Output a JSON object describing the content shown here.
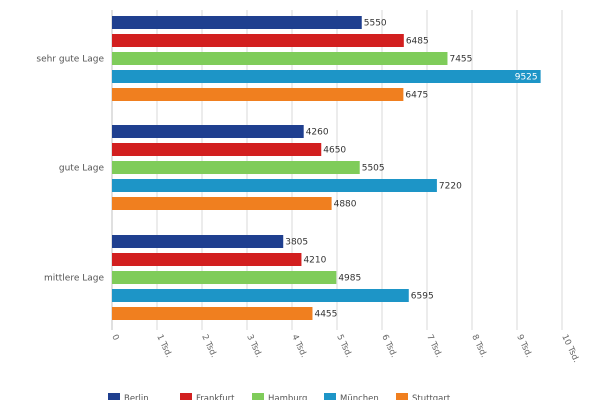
{
  "chart_data": {
    "type": "bar",
    "orientation": "horizontal",
    "categories": [
      "sehr gute Lage",
      "gute Lage",
      "mittlere Lage"
    ],
    "series": [
      {
        "name": "Berlin",
        "color": "#1f3f8f",
        "values": [
          5550,
          4260,
          3805
        ]
      },
      {
        "name": "Frankfurt",
        "color": "#d21f1f",
        "values": [
          6485,
          4650,
          4210
        ]
      },
      {
        "name": "Hamburg",
        "color": "#7fcc5a",
        "values": [
          7455,
          5505,
          4985
        ]
      },
      {
        "name": "München",
        "color": "#1d95c7",
        "values": [
          9525,
          7220,
          6595
        ]
      },
      {
        "name": "Stuttgart",
        "color": "#f07f1f",
        "values": [
          6475,
          4880,
          4455
        ]
      }
    ],
    "value_labels": [
      [
        "5550",
        "6485",
        "7455",
        "9525",
        "6475"
      ],
      [
        "4260",
        "4650",
        "5505",
        "7220",
        "4880"
      ],
      [
        "3805",
        "4210",
        "4985",
        "6595",
        "4455"
      ]
    ],
    "xlim": [
      0,
      10000
    ],
    "x_ticks": [
      0,
      1000,
      2000,
      3000,
      4000,
      5000,
      6000,
      7000,
      8000,
      9000,
      10000
    ],
    "x_tick_labels": [
      "0",
      "1 Tsd.",
      "2 Tsd.",
      "3 Tsd.",
      "4 Tsd.",
      "5 Tsd.",
      "6 Tsd.",
      "7 Tsd.",
      "8 Tsd.",
      "9 Tsd.",
      "10 Tsd."
    ],
    "grid": true,
    "legend_position": "bottom"
  }
}
